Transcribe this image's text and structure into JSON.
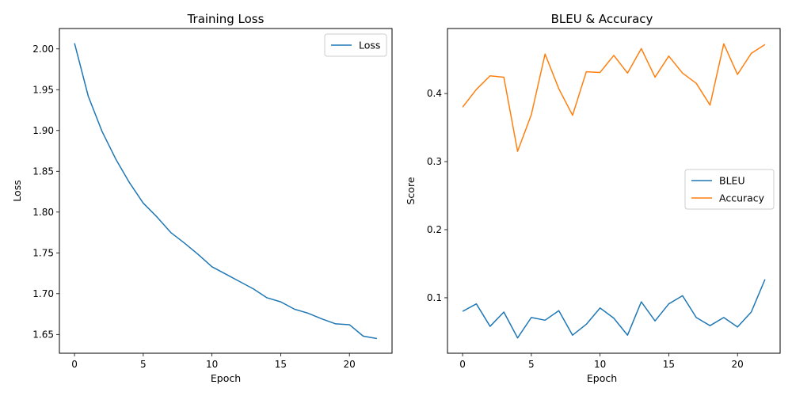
{
  "chart_data": [
    {
      "type": "line",
      "title": "Training Loss",
      "xlabel": "Epoch",
      "ylabel": "Loss",
      "xlim": [
        -1.1,
        23.1
      ],
      "ylim": [
        1.627,
        2.025
      ],
      "xticks": [
        0,
        5,
        10,
        15,
        20
      ],
      "yticks": [
        1.65,
        1.7,
        1.75,
        1.8,
        1.85,
        1.9,
        1.95,
        2.0
      ],
      "ytick_labels": [
        "1.65",
        "1.70",
        "1.75",
        "1.80",
        "1.85",
        "1.90",
        "1.95",
        "2.00"
      ],
      "grid": false,
      "legend": "upper right",
      "x": [
        0,
        1,
        2,
        3,
        4,
        5,
        6,
        7,
        8,
        9,
        10,
        11,
        12,
        13,
        14,
        15,
        16,
        17,
        18,
        19,
        20,
        21,
        22
      ],
      "series": [
        {
          "name": "Loss",
          "color": "#1f77b4",
          "values": [
            2.007,
            1.942,
            1.899,
            1.865,
            1.836,
            1.811,
            1.794,
            1.775,
            1.762,
            1.748,
            1.733,
            1.724,
            1.715,
            1.706,
            1.695,
            1.69,
            1.681,
            1.676,
            1.669,
            1.663,
            1.662,
            1.648,
            1.645
          ]
        }
      ]
    },
    {
      "type": "line",
      "title": "BLEU & Accuracy",
      "xlabel": "Epoch",
      "ylabel": "Score",
      "xlim": [
        -1.1,
        23.1
      ],
      "ylim": [
        0.0185,
        0.4955
      ],
      "xticks": [
        0,
        5,
        10,
        15,
        20
      ],
      "yticks": [
        0.1,
        0.2,
        0.3,
        0.4
      ],
      "ytick_labels": [
        "0.1",
        "0.2",
        "0.3",
        "0.4"
      ],
      "grid": false,
      "legend": "center right",
      "x": [
        0,
        1,
        2,
        3,
        4,
        5,
        6,
        7,
        8,
        9,
        10,
        11,
        12,
        13,
        14,
        15,
        16,
        17,
        18,
        19,
        20,
        21,
        22
      ],
      "series": [
        {
          "name": "BLEU",
          "color": "#1f77b4",
          "values": [
            0.08,
            0.091,
            0.058,
            0.079,
            0.041,
            0.071,
            0.067,
            0.081,
            0.045,
            0.061,
            0.085,
            0.07,
            0.045,
            0.094,
            0.066,
            0.091,
            0.103,
            0.071,
            0.059,
            0.071,
            0.057,
            0.079,
            0.127
          ]
        },
        {
          "name": "Accuracy",
          "color": "#ff7f0e",
          "values": [
            0.38,
            0.406,
            0.426,
            0.424,
            0.315,
            0.369,
            0.458,
            0.407,
            0.368,
            0.432,
            0.431,
            0.456,
            0.43,
            0.466,
            0.424,
            0.455,
            0.43,
            0.415,
            0.383,
            0.473,
            0.428,
            0.459,
            0.472
          ]
        }
      ]
    }
  ]
}
